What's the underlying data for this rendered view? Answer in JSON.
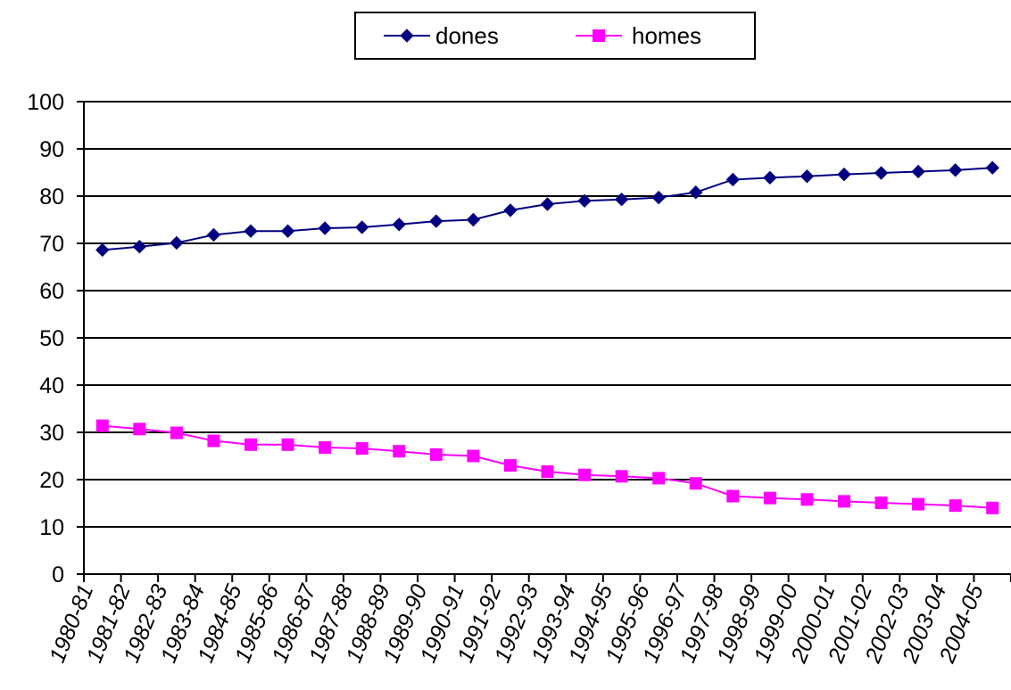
{
  "chart_data": {
    "type": "line",
    "categories": [
      "1980-81",
      "1981-82",
      "1982-83",
      "1983-84",
      "1984-85",
      "1985-86",
      "1986-87",
      "1987-88",
      "1988-89",
      "1989-90",
      "1990-91",
      "1991-92",
      "1992-93",
      "1993-94",
      "1994-95",
      "1995-96",
      "1996-97",
      "1997-98",
      "1998-99",
      "1999-00",
      "2000-01",
      "2001-02",
      "2002-03",
      "2003-04",
      "2004-05"
    ],
    "series": [
      {
        "name": "dones",
        "color": "#000080",
        "marker": "diamond",
        "values": [
          68.6,
          69.3,
          70.1,
          71.8,
          72.6,
          72.6,
          73.2,
          73.4,
          74.0,
          74.7,
          75.0,
          77.0,
          78.3,
          79.0,
          79.3,
          79.7,
          80.8,
          83.5,
          83.9,
          84.2,
          84.6,
          84.9,
          85.2,
          85.5,
          86.0
        ]
      },
      {
        "name": "homes",
        "color": "#ff00ff",
        "marker": "square",
        "values": [
          31.4,
          30.7,
          29.9,
          28.2,
          27.4,
          27.4,
          26.8,
          26.6,
          26.0,
          25.3,
          25.0,
          23.0,
          21.7,
          21.0,
          20.7,
          20.3,
          19.2,
          16.5,
          16.1,
          15.8,
          15.4,
          15.1,
          14.8,
          14.5,
          14.0
        ]
      }
    ],
    "title": "",
    "xlabel": "",
    "ylabel": "",
    "ylim": [
      0,
      100
    ],
    "yticks": [
      "0",
      "10",
      "20",
      "30",
      "40",
      "50",
      "60",
      "70",
      "80",
      "90",
      "100"
    ],
    "grid": "horizontal",
    "legend_position": "top"
  }
}
